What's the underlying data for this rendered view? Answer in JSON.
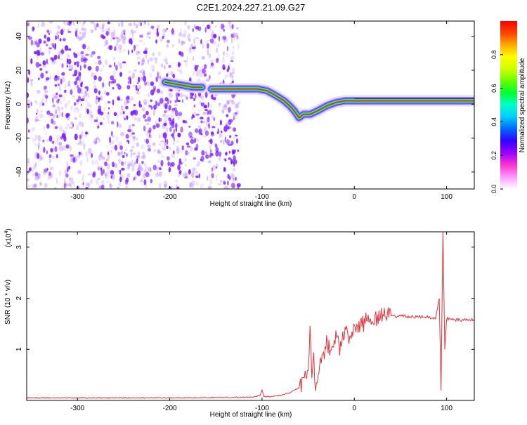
{
  "title": "C2E1.2024.227.21.09.G27",
  "chart_data": [
    {
      "type": "heatmap",
      "xlabel": "Height of straight line (km)",
      "ylabel": "Frequency (Hz)",
      "xlim": [
        -355,
        130
      ],
      "ylim": [
        -50,
        49
      ],
      "x_ticks": [
        -300,
        -200,
        -100,
        0,
        100
      ],
      "y_ticks": [
        -40,
        -20,
        0,
        20,
        40
      ],
      "colorbar": {
        "label": "Normalized spectral amplitude",
        "range": [
          0,
          1
        ],
        "ticks": [
          "0.0",
          "0.2",
          "0.4",
          "0.6",
          "0.8"
        ],
        "colormap": [
          "#ffffff",
          "#ff99ff",
          "#ff33cc",
          "#9900ff",
          "#3300ff",
          "#0066ff",
          "#00ccff",
          "#00ffcc",
          "#00ff33",
          "#66ff00",
          "#ccff00",
          "#ffff00",
          "#ffaa00",
          "#ff4400",
          "#ff0000"
        ]
      },
      "noise_region": {
        "x_from": -355,
        "x_to": -125,
        "color": "#7a1fff"
      },
      "track": [
        {
          "x": -205,
          "y": 13
        },
        {
          "x": -195,
          "y": 12
        },
        {
          "x": -185,
          "y": 11
        },
        {
          "x": -175,
          "y": 10
        },
        {
          "x": -165,
          "y": 10
        },
        {
          "x": -155,
          "y": 9
        },
        {
          "x": -145,
          "y": 9
        },
        {
          "x": -135,
          "y": 9
        },
        {
          "x": -125,
          "y": 9
        },
        {
          "x": -115,
          "y": 9
        },
        {
          "x": -105,
          "y": 9
        },
        {
          "x": -95,
          "y": 8
        },
        {
          "x": -88,
          "y": 6
        },
        {
          "x": -82,
          "y": 4
        },
        {
          "x": -76,
          "y": 2
        },
        {
          "x": -70,
          "y": -1
        },
        {
          "x": -65,
          "y": -4
        },
        {
          "x": -60,
          "y": -8
        },
        {
          "x": -55,
          "y": -6
        },
        {
          "x": -48,
          "y": -6
        },
        {
          "x": -40,
          "y": -4
        },
        {
          "x": -30,
          "y": -1
        },
        {
          "x": -20,
          "y": 1
        },
        {
          "x": -10,
          "y": 2
        },
        {
          "x": 0,
          "y": 2
        },
        {
          "x": 20,
          "y": 2
        },
        {
          "x": 40,
          "y": 2
        },
        {
          "x": 60,
          "y": 2
        },
        {
          "x": 80,
          "y": 2
        },
        {
          "x": 92,
          "y": 2
        },
        {
          "x": 100,
          "y": 2
        },
        {
          "x": 120,
          "y": 2
        },
        {
          "x": 130,
          "y": 2
        }
      ],
      "track_gaps": [
        [
          -170,
          -150
        ]
      ]
    },
    {
      "type": "line",
      "xlabel": "Height of straight line (km)",
      "ylabel": "SNR (10 * v/v)",
      "y_multiplier_label": "(x10",
      "y_multiplier_exp": "4",
      "xlim": [
        -355,
        130
      ],
      "ylim": [
        0,
        3.3
      ],
      "x_ticks": [
        -300,
        -200,
        -100,
        0,
        100
      ],
      "y_ticks": [
        1,
        2,
        3
      ],
      "color": "#e8313a",
      "series": [
        {
          "x": [
            -355,
            -300,
            -200,
            -130,
            -110,
            -102,
            -100,
            -98,
            -90,
            -80,
            -70,
            -60,
            -55,
            -50,
            -48,
            -46,
            -44,
            -42,
            -40,
            -35,
            -30,
            -25,
            -20,
            -15,
            -10,
            -5,
            0,
            10,
            20,
            30,
            40,
            50,
            60,
            70,
            80,
            88,
            92,
            94,
            96,
            98,
            100,
            110,
            120,
            130
          ],
          "y": [
            0.05,
            0.05,
            0.05,
            0.06,
            0.06,
            0.1,
            0.2,
            0.08,
            0.07,
            0.1,
            0.15,
            0.25,
            0.4,
            0.55,
            1.4,
            0.3,
            0.9,
            0.2,
            0.5,
            0.8,
            1.1,
            1.0,
            1.3,
            1.0,
            1.45,
            1.25,
            1.4,
            1.52,
            1.6,
            1.65,
            1.65,
            1.65,
            1.64,
            1.64,
            1.63,
            1.6,
            2.0,
            0.2,
            3.3,
            1.0,
            1.6,
            1.58,
            1.57,
            1.58
          ]
        }
      ]
    }
  ]
}
